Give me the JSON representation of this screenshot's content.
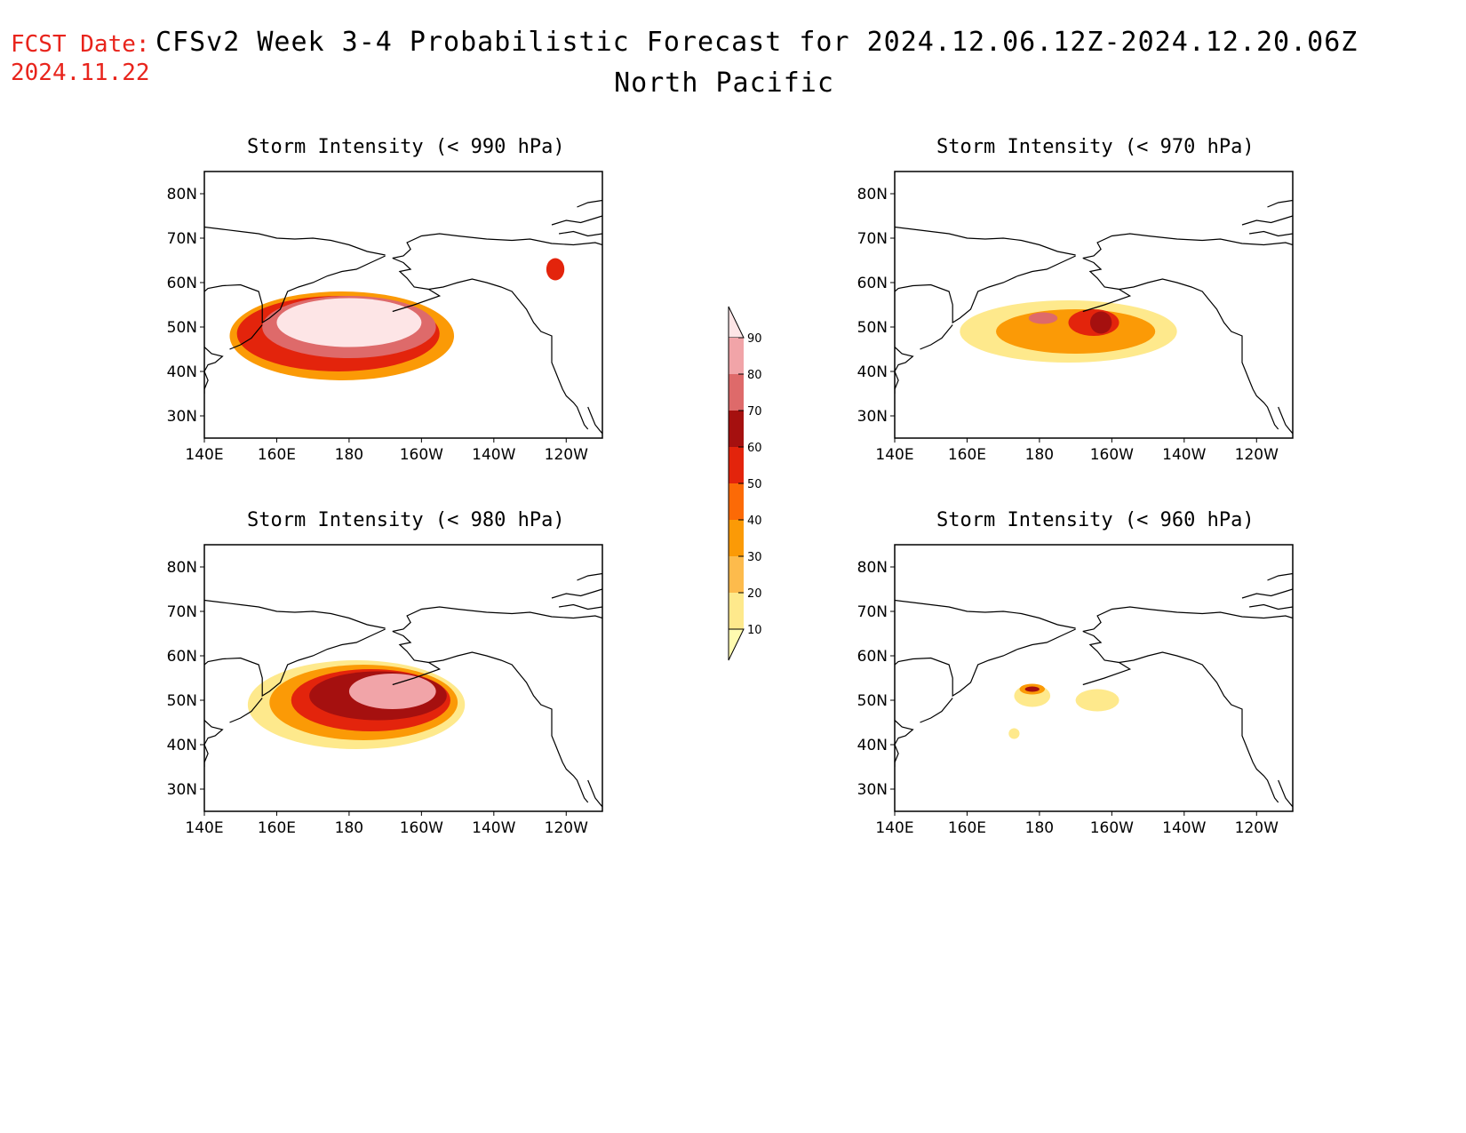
{
  "header": {
    "fcst_label": "FCST Date:",
    "fcst_date": "2024.11.22",
    "title": "CFSv2 Week 3-4 Probabilistic Forecast for 2024.12.06.12Z-2024.12.20.06Z",
    "region": "North Pacific"
  },
  "axes": {
    "lon_ticks": [
      "140E",
      "160E",
      "180",
      "160W",
      "140W",
      "120W"
    ],
    "lat_ticks": [
      "80N",
      "70N",
      "60N",
      "50N",
      "40N",
      "30N"
    ],
    "lon_range_deg_east": [
      140,
      250
    ],
    "lat_range": [
      25,
      85
    ]
  },
  "colorbar": {
    "levels": [
      "10",
      "20",
      "30",
      "40",
      "50",
      "60",
      "70",
      "80",
      "90"
    ],
    "colors": [
      "#fffbb0",
      "#fee98c",
      "#fdbb4c",
      "#fb9a06",
      "#fc6a06",
      "#e3240c",
      "#a5100f",
      "#de6a6a",
      "#f1a4a8",
      "#fde5e6"
    ]
  },
  "panels": [
    {
      "id": "p990",
      "title": "Storm Intensity (< 990 hPa)",
      "fields": [
        {
          "level": 3,
          "cx": 178,
          "cy": 48,
          "rx": 31,
          "ry": 10
        },
        {
          "level": 5,
          "cx": 177,
          "cy": 48.5,
          "rx": 28,
          "ry": 8.5
        },
        {
          "level": 7,
          "cx": 180,
          "cy": 50,
          "rx": 24,
          "ry": 7
        },
        {
          "level": 9,
          "cx": 180,
          "cy": 51,
          "rx": 20,
          "ry": 5.5
        },
        {
          "level": 5,
          "cx": 237,
          "cy": 63,
          "rx": 2.5,
          "ry": 2.5
        }
      ]
    },
    {
      "id": "p970",
      "title": "Storm Intensity (< 970 hPa)",
      "fields": [
        {
          "level": 1,
          "cx": 188,
          "cy": 49,
          "rx": 30,
          "ry": 7
        },
        {
          "level": 3,
          "cx": 190,
          "cy": 49,
          "rx": 22,
          "ry": 5
        },
        {
          "level": 5,
          "cx": 195,
          "cy": 51,
          "rx": 7,
          "ry": 3
        },
        {
          "level": 6,
          "cx": 197,
          "cy": 51,
          "rx": 3,
          "ry": 2.5
        },
        {
          "level": 7,
          "cx": 181,
          "cy": 52,
          "rx": 4,
          "ry": 1.3
        }
      ]
    },
    {
      "id": "p980",
      "title": "Storm Intensity (< 980 hPa)",
      "fields": [
        {
          "level": 1,
          "cx": 182,
          "cy": 49,
          "rx": 30,
          "ry": 10
        },
        {
          "level": 3,
          "cx": 184,
          "cy": 49.5,
          "rx": 26,
          "ry": 8.5
        },
        {
          "level": 5,
          "cx": 186,
          "cy": 50,
          "rx": 22,
          "ry": 7
        },
        {
          "level": 6,
          "cx": 188,
          "cy": 51,
          "rx": 19,
          "ry": 5.5
        },
        {
          "level": 8,
          "cx": 192,
          "cy": 52,
          "rx": 12,
          "ry": 4
        }
      ]
    },
    {
      "id": "p960",
      "title": "Storm Intensity (< 960 hPa)",
      "fields": [
        {
          "level": 1,
          "cx": 178,
          "cy": 51,
          "rx": 5,
          "ry": 2.5
        },
        {
          "level": 1,
          "cx": 196,
          "cy": 50,
          "rx": 6,
          "ry": 2.5
        },
        {
          "level": 3,
          "cx": 178,
          "cy": 52.5,
          "rx": 3.5,
          "ry": 1.2
        },
        {
          "level": 6,
          "cx": 178,
          "cy": 52.5,
          "rx": 2,
          "ry": 0.6
        },
        {
          "level": 1,
          "cx": 173,
          "cy": 42.5,
          "rx": 1.5,
          "ry": 1.2
        }
      ]
    }
  ]
}
